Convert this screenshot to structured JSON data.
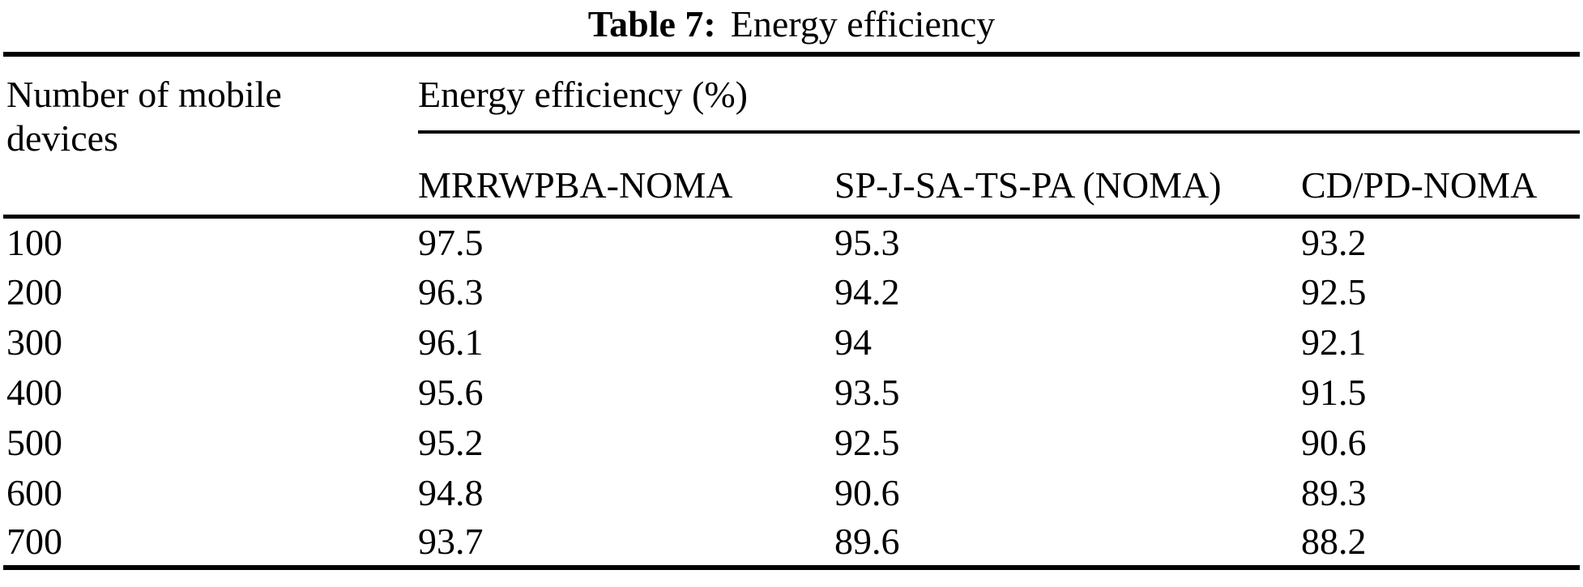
{
  "caption": {
    "label": "Table 7:",
    "text": "Energy efficiency"
  },
  "table": {
    "column_header": "Number of mobile devices",
    "group_header": "Energy efficiency (%)",
    "sub_headers": [
      "MRRWPBA-NOMA",
      "SP-J-SA-TS-PA (NOMA)",
      "CD/PD-NOMA"
    ],
    "rows": [
      {
        "devices": "100",
        "mrrwpba_noma": "97.5",
        "sp_j_sa_ts_pa_noma": "95.3",
        "cd_pd_noma": "93.2"
      },
      {
        "devices": "200",
        "mrrwpba_noma": "96.3",
        "sp_j_sa_ts_pa_noma": "94.2",
        "cd_pd_noma": "92.5"
      },
      {
        "devices": "300",
        "mrrwpba_noma": "96.1",
        "sp_j_sa_ts_pa_noma": "94",
        "cd_pd_noma": "92.1"
      },
      {
        "devices": "400",
        "mrrwpba_noma": "95.6",
        "sp_j_sa_ts_pa_noma": "93.5",
        "cd_pd_noma": "91.5"
      },
      {
        "devices": "500",
        "mrrwpba_noma": "95.2",
        "sp_j_sa_ts_pa_noma": "92.5",
        "cd_pd_noma": "90.6"
      },
      {
        "devices": "600",
        "mrrwpba_noma": "94.8",
        "sp_j_sa_ts_pa_noma": "90.6",
        "cd_pd_noma": "89.3"
      },
      {
        "devices": "700",
        "mrrwpba_noma": "93.7",
        "sp_j_sa_ts_pa_noma": "89.6",
        "cd_pd_noma": "88.2"
      }
    ]
  },
  "chart_data": {
    "type": "table",
    "title": "Table 7: Energy efficiency",
    "xlabel": "Number of mobile devices",
    "ylabel": "Energy efficiency (%)",
    "categories": [
      100,
      200,
      300,
      400,
      500,
      600,
      700
    ],
    "series": [
      {
        "name": "MRRWPBA-NOMA",
        "values": [
          97.5,
          96.3,
          96.1,
          95.6,
          95.2,
          94.8,
          93.7
        ]
      },
      {
        "name": "SP-J-SA-TS-PA (NOMA)",
        "values": [
          95.3,
          94.2,
          94,
          93.5,
          92.5,
          90.6,
          89.6
        ]
      },
      {
        "name": "CD/PD-NOMA",
        "values": [
          93.2,
          92.5,
          92.1,
          91.5,
          90.6,
          89.3,
          88.2
        ]
      }
    ]
  }
}
